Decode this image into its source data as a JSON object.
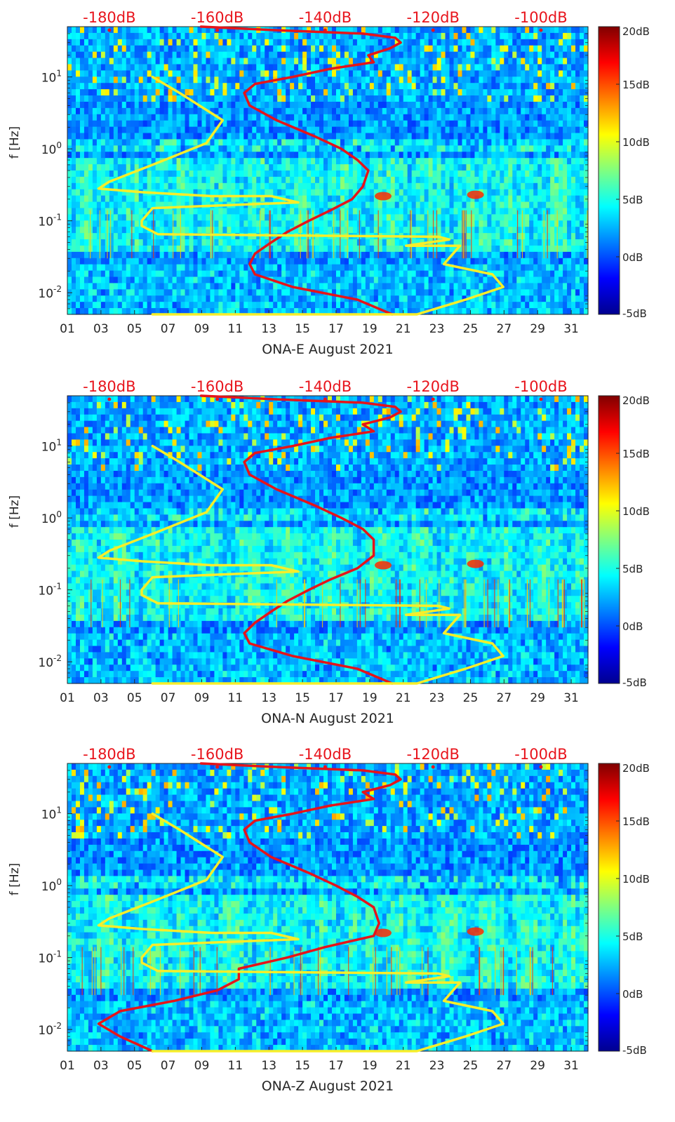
{
  "colors": {
    "red_curve": "#e5141a",
    "yellow_curve": "#f7ee2a",
    "top_axis_text": "#e8141c",
    "axis_text": "#262626"
  },
  "chart_data": [
    {
      "type": "heatmap",
      "title": "",
      "xlabel": "ONA-E August 2021",
      "ylabel": "f [Hz]",
      "x_tick_labels": [
        "01",
        "03",
        "05",
        "07",
        "09",
        "11",
        "13",
        "15",
        "17",
        "19",
        "21",
        "23",
        "25",
        "27",
        "29",
        "31"
      ],
      "xlim": [
        1,
        32
      ],
      "y_scale": "log",
      "ylim": [
        0.005,
        50
      ],
      "y_tick_labels": [
        {
          "base": "10",
          "exp": "-2"
        },
        {
          "base": "10",
          "exp": "-1"
        },
        {
          "base": "10",
          "exp": "0"
        },
        {
          "base": "10",
          "exp": "1"
        }
      ],
      "y_ticks": [
        0.01,
        0.1,
        1,
        10
      ],
      "top_axis_labels": [
        "-180dB",
        "-160dB",
        "-140dB",
        "-120dB",
        "-100dB"
      ],
      "top_axis_values": [
        -180,
        -160,
        -140,
        -120,
        -100
      ],
      "colorbar": {
        "labels": [
          "-5dB",
          "0dB",
          "5dB",
          "10dB",
          "15dB",
          "20dB"
        ],
        "values": [
          -5,
          0,
          5,
          10,
          15,
          20
        ],
        "colormap": "jet"
      },
      "series": [
        {
          "color": "red",
          "x_dB": [
            -127.6,
            -134,
            -146,
            -153,
            -154,
            -153,
            -150,
            -147,
            -143,
            -139,
            -135,
            -133,
            -132,
            -134,
            -137,
            -142,
            -149,
            -154,
            -155,
            -153,
            -146,
            -139,
            -131,
            -132,
            -128,
            -126,
            -127,
            -133,
            -150,
            -163
          ],
          "f": [
            0.005,
            0.008,
            0.012,
            0.018,
            0.025,
            0.035,
            0.05,
            0.07,
            0.1,
            0.14,
            0.2,
            0.3,
            0.5,
            0.7,
            1.0,
            1.5,
            2.5,
            4,
            6,
            8,
            10,
            13,
            16,
            20,
            25,
            30,
            35,
            40,
            45,
            50
          ]
        },
        {
          "color": "yellow",
          "x_dB": [
            -172,
            -167,
            -159,
            -162,
            -172,
            -180,
            -182,
            -174,
            -161,
            -150,
            -145,
            -172,
            -174,
            -174,
            -171,
            -119,
            -117,
            -125,
            -115,
            -118,
            -109,
            -107,
            -114,
            -123,
            -128,
            -146,
            -159,
            -172
          ],
          "f": [
            10,
            6,
            2.5,
            1.2,
            0.6,
            0.35,
            0.28,
            0.25,
            0.22,
            0.22,
            0.18,
            0.15,
            0.1,
            0.085,
            0.065,
            0.06,
            0.055,
            0.045,
            0.045,
            0.025,
            0.018,
            0.012,
            0.008,
            0.005,
            0.005,
            0.005,
            0.005,
            0.005
          ]
        }
      ]
    },
    {
      "type": "heatmap",
      "title": "",
      "xlabel": "ONA-N August 2021",
      "ylabel": "f [Hz]",
      "x_tick_labels": [
        "01",
        "03",
        "05",
        "07",
        "09",
        "11",
        "13",
        "15",
        "17",
        "19",
        "21",
        "23",
        "25",
        "27",
        "29",
        "31"
      ],
      "xlim": [
        1,
        32
      ],
      "y_scale": "log",
      "ylim": [
        0.005,
        50
      ],
      "y_tick_labels": [
        {
          "base": "10",
          "exp": "-2"
        },
        {
          "base": "10",
          "exp": "-1"
        },
        {
          "base": "10",
          "exp": "0"
        },
        {
          "base": "10",
          "exp": "1"
        }
      ],
      "y_ticks": [
        0.01,
        0.1,
        1,
        10
      ],
      "top_axis_labels": [
        "-180dB",
        "-160dB",
        "-140dB",
        "-120dB",
        "-100dB"
      ],
      "top_axis_values": [
        -180,
        -160,
        -140,
        -120,
        -100
      ],
      "colorbar": {
        "labels": [
          "-5dB",
          "0dB",
          "5dB",
          "10dB",
          "15dB",
          "20dB"
        ],
        "values": [
          -5,
          0,
          5,
          10,
          15,
          20
        ],
        "colormap": "jet"
      },
      "series": [
        {
          "color": "red",
          "x_dB": [
            -127.6,
            -134,
            -146,
            -154,
            -155,
            -153,
            -150,
            -147,
            -143,
            -139,
            -134,
            -131,
            -131,
            -133,
            -137,
            -142,
            -149,
            -154,
            -155,
            -153,
            -146,
            -139,
            -131,
            -133,
            -128,
            -126,
            -127,
            -133,
            -150,
            -163
          ],
          "f": [
            0.005,
            0.008,
            0.012,
            0.018,
            0.025,
            0.035,
            0.05,
            0.07,
            0.1,
            0.14,
            0.2,
            0.3,
            0.5,
            0.7,
            1.0,
            1.5,
            2.5,
            4,
            6,
            8,
            10,
            13,
            16,
            20,
            25,
            30,
            35,
            40,
            45,
            50
          ]
        },
        {
          "color": "yellow",
          "x_dB": [
            -172,
            -167,
            -159,
            -162,
            -172,
            -180,
            -182,
            -174,
            -161,
            -150,
            -145,
            -172,
            -174,
            -174,
            -171,
            -119,
            -117,
            -125,
            -115,
            -118,
            -109,
            -107,
            -114,
            -123,
            -128,
            -146,
            -159,
            -172
          ],
          "f": [
            10,
            6,
            2.5,
            1.2,
            0.6,
            0.35,
            0.28,
            0.25,
            0.22,
            0.22,
            0.18,
            0.15,
            0.1,
            0.085,
            0.065,
            0.06,
            0.055,
            0.045,
            0.045,
            0.025,
            0.018,
            0.012,
            0.008,
            0.005,
            0.005,
            0.005,
            0.005,
            0.005
          ]
        }
      ]
    },
    {
      "type": "heatmap",
      "title": "",
      "xlabel": "ONA-Z August 2021",
      "ylabel": "f [Hz]",
      "x_tick_labels": [
        "01",
        "03",
        "05",
        "07",
        "09",
        "11",
        "13",
        "15",
        "17",
        "19",
        "21",
        "23",
        "25",
        "27",
        "29",
        "31"
      ],
      "xlim": [
        1,
        32
      ],
      "y_scale": "log",
      "ylim": [
        0.005,
        50
      ],
      "y_tick_labels": [
        {
          "base": "10",
          "exp": "-2"
        },
        {
          "base": "10",
          "exp": "-1"
        },
        {
          "base": "10",
          "exp": "0"
        },
        {
          "base": "10",
          "exp": "1"
        }
      ],
      "y_ticks": [
        0.01,
        0.1,
        1,
        10
      ],
      "top_axis_labels": [
        "-180dB",
        "-160dB",
        "-140dB",
        "-120dB",
        "-100dB"
      ],
      "top_axis_values": [
        -180,
        -160,
        -140,
        -120,
        -100
      ],
      "colorbar": {
        "labels": [
          "-5dB",
          "0dB",
          "5dB",
          "10dB",
          "15dB",
          "20dB"
        ],
        "values": [
          -5,
          0,
          5,
          10,
          15,
          20
        ],
        "colormap": "jet"
      },
      "series": [
        {
          "color": "red",
          "x_dB": [
            -172,
            -178,
            -182,
            -178,
            -168,
            -160,
            -156,
            -156,
            -147,
            -140,
            -131,
            -130,
            -131,
            -134,
            -138,
            -143,
            -150,
            -154,
            -155,
            -153,
            -146,
            -139,
            -131,
            -133,
            -128,
            -126,
            -127,
            -133,
            -150,
            -163
          ],
          "f": [
            0.005,
            0.008,
            0.012,
            0.018,
            0.025,
            0.035,
            0.05,
            0.07,
            0.1,
            0.14,
            0.2,
            0.3,
            0.5,
            0.7,
            1.0,
            1.5,
            2.5,
            4,
            6,
            8,
            10,
            13,
            16,
            20,
            25,
            30,
            35,
            40,
            45,
            50
          ]
        },
        {
          "color": "yellow",
          "x_dB": [
            -172,
            -167,
            -159,
            -162,
            -172,
            -180,
            -182,
            -174,
            -161,
            -150,
            -145,
            -172,
            -174,
            -174,
            -171,
            -119,
            -117,
            -125,
            -115,
            -118,
            -109,
            -107,
            -114,
            -123,
            -128,
            -146,
            -159,
            -172
          ],
          "f": [
            10,
            6,
            2.5,
            1.2,
            0.6,
            0.35,
            0.28,
            0.25,
            0.22,
            0.22,
            0.18,
            0.15,
            0.1,
            0.085,
            0.065,
            0.06,
            0.055,
            0.045,
            0.045,
            0.025,
            0.018,
            0.012,
            0.008,
            0.005,
            0.005,
            0.005,
            0.005,
            0.005
          ]
        }
      ]
    }
  ]
}
